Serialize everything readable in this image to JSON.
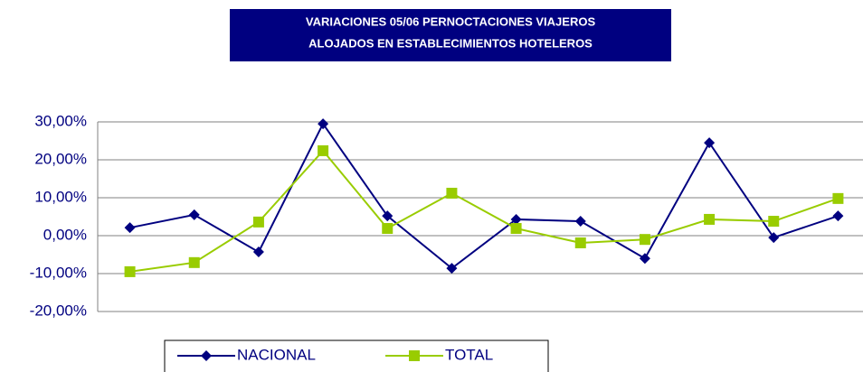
{
  "chart_data": {
    "type": "line",
    "title": [
      "VARIACIONES 05/06 PERNOCTACIONES VIAJEROS",
      "ALOJADOS EN ESTABLECIMIENTOS HOTELEROS"
    ],
    "categories": [
      null,
      null,
      null,
      null,
      null,
      null,
      null,
      null,
      null,
      null,
      null,
      null
    ],
    "series": [
      {
        "name": "NACIONAL",
        "color": "#000080",
        "marker": "diamond",
        "values": [
          2.1,
          5.5,
          -4.3,
          29.5,
          5.2,
          -8.6,
          4.3,
          3.8,
          -6.0,
          24.5,
          -0.5,
          5.2
        ]
      },
      {
        "name": "TOTAL",
        "color": "#99cc00",
        "marker": "square",
        "values": [
          -9.5,
          -7.1,
          3.6,
          22.4,
          1.9,
          11.2,
          1.9,
          -1.9,
          -1.0,
          4.3,
          3.8,
          9.8
        ]
      }
    ],
    "ylim": [
      -20,
      30
    ],
    "yticks": [
      {
        "value": -20,
        "label": "-20,00%"
      },
      {
        "value": -10,
        "label": "-10,00%"
      },
      {
        "value": 0,
        "label": "0,00%"
      },
      {
        "value": 10,
        "label": "10,00%"
      },
      {
        "value": 20,
        "label": "20,00%"
      },
      {
        "value": 30,
        "label": "30,00%"
      }
    ],
    "grid": true,
    "legend": "bottom"
  }
}
